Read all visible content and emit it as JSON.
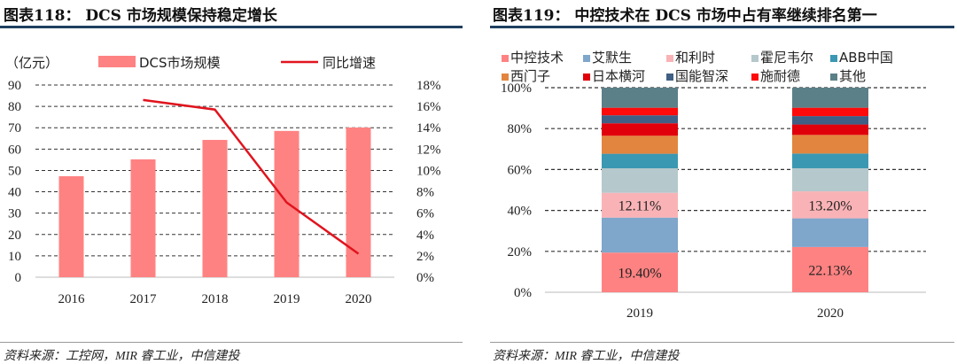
{
  "chart_data": [
    {
      "type": "bar",
      "title": "图表118： DCS 市场规模保持稳定增长",
      "source": "资料来源：工控网，MIR 睿工业，中信建投",
      "ylabel": "（亿元）",
      "categories": [
        "2016",
        "2017",
        "2018",
        "2019",
        "2020"
      ],
      "series": [
        {
          "name": "DCS市场规模",
          "type": "bar",
          "axis": "left",
          "color": "#ff8282",
          "values": [
            47.3,
            55.2,
            64.3,
            68.5,
            70.1
          ]
        },
        {
          "name": "同比增速",
          "type": "line",
          "axis": "right",
          "color": "#e0141e",
          "values": [
            null,
            16.6,
            15.7,
            7.0,
            2.2
          ]
        }
      ],
      "ylim": [
        0,
        90
      ],
      "yticks": [
        "0",
        "10",
        "20",
        "30",
        "40",
        "50",
        "60",
        "70",
        "80",
        "90"
      ],
      "y2lim": [
        0,
        18
      ],
      "y2ticks": [
        "0%",
        "2%",
        "4%",
        "6%",
        "8%",
        "10%",
        "12%",
        "14%",
        "16%",
        "18%"
      ],
      "grid": true,
      "legend": "top"
    },
    {
      "type": "bar",
      "stacked": true,
      "title": "图表119： 中控技术在 DCS 市场中占有率继续排名第一",
      "source": "资料来源：MIR 睿工业，中信建投",
      "categories": [
        "2019",
        "2020"
      ],
      "series": [
        {
          "name": "中控技术",
          "color": "#ff8282",
          "values": [
            19.4,
            22.13
          ],
          "labels": [
            "19.40%",
            "22.13%"
          ]
        },
        {
          "name": "艾默生",
          "color": "#7fa6cb",
          "values": [
            17.1,
            14.0
          ],
          "labels": [
            null,
            null
          ]
        },
        {
          "name": "和利时",
          "color": "#f9b3b6",
          "values": [
            12.11,
            13.2
          ],
          "labels": [
            "12.11%",
            "13.20%"
          ]
        },
        {
          "name": "霍尼韦尔",
          "color": "#b5c8cc",
          "values": [
            12.0,
            11.3
          ]
        },
        {
          "name": "ABB中国",
          "color": "#3b98b2",
          "values": [
            7.1,
            7.2
          ]
        },
        {
          "name": "西门子",
          "color": "#e2853e",
          "values": [
            8.8,
            9.1
          ]
        },
        {
          "name": "日本横河",
          "color": "#e0000b",
          "values": [
            6.1,
            5.1
          ]
        },
        {
          "name": "国能智深",
          "color": "#3f5f84",
          "values": [
            3.9,
            4.1
          ]
        },
        {
          "name": "施耐德",
          "color": "#ff0a0a",
          "values": [
            3.7,
            4.1
          ]
        },
        {
          "name": "其他",
          "color": "#5b8088",
          "values": [
            9.8,
            9.8
          ]
        }
      ],
      "ylim": [
        0,
        100
      ],
      "yticks": [
        "0%",
        "20%",
        "40%",
        "60%",
        "80%",
        "100%"
      ],
      "grid": true,
      "legend": "top"
    }
  ]
}
